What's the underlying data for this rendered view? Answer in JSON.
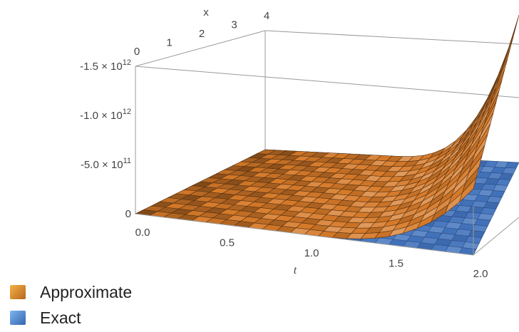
{
  "chart_data": {
    "type": "surface3d",
    "title": "",
    "axes": {
      "x": {
        "label": "x",
        "ticks": [
          "0",
          "1",
          "2",
          "3",
          "4"
        ],
        "range": [
          0,
          4
        ]
      },
      "t": {
        "label": "t",
        "ticks": [
          "0.0",
          "0.5",
          "1.0",
          "1.5",
          "2.0"
        ],
        "range": [
          0,
          2
        ]
      },
      "z": {
        "ticks": [
          {
            "value": 0,
            "mantissa": "0",
            "exponent": ""
          },
          {
            "value": -500000000000,
            "mantissa": "-5.0 × 10",
            "exponent": "11"
          },
          {
            "value": -1000000000000,
            "mantissa": "-1.0 × 10",
            "exponent": "12"
          },
          {
            "value": -1500000000000,
            "mantissa": "-1.5 × 10",
            "exponent": "12"
          }
        ],
        "range": [
          0,
          -1500000000000
        ]
      }
    },
    "series": [
      {
        "name": "Approximate",
        "color": "#d9822b",
        "shape": "grows with t, near 0 until t≈1.2, reaching about -1.5×10^12 at t=2, x=4"
      },
      {
        "name": "Exact",
        "color": "#3f6fb5",
        "shape": "flat at 0"
      }
    ],
    "legend": "bottom-left",
    "grid": false
  }
}
